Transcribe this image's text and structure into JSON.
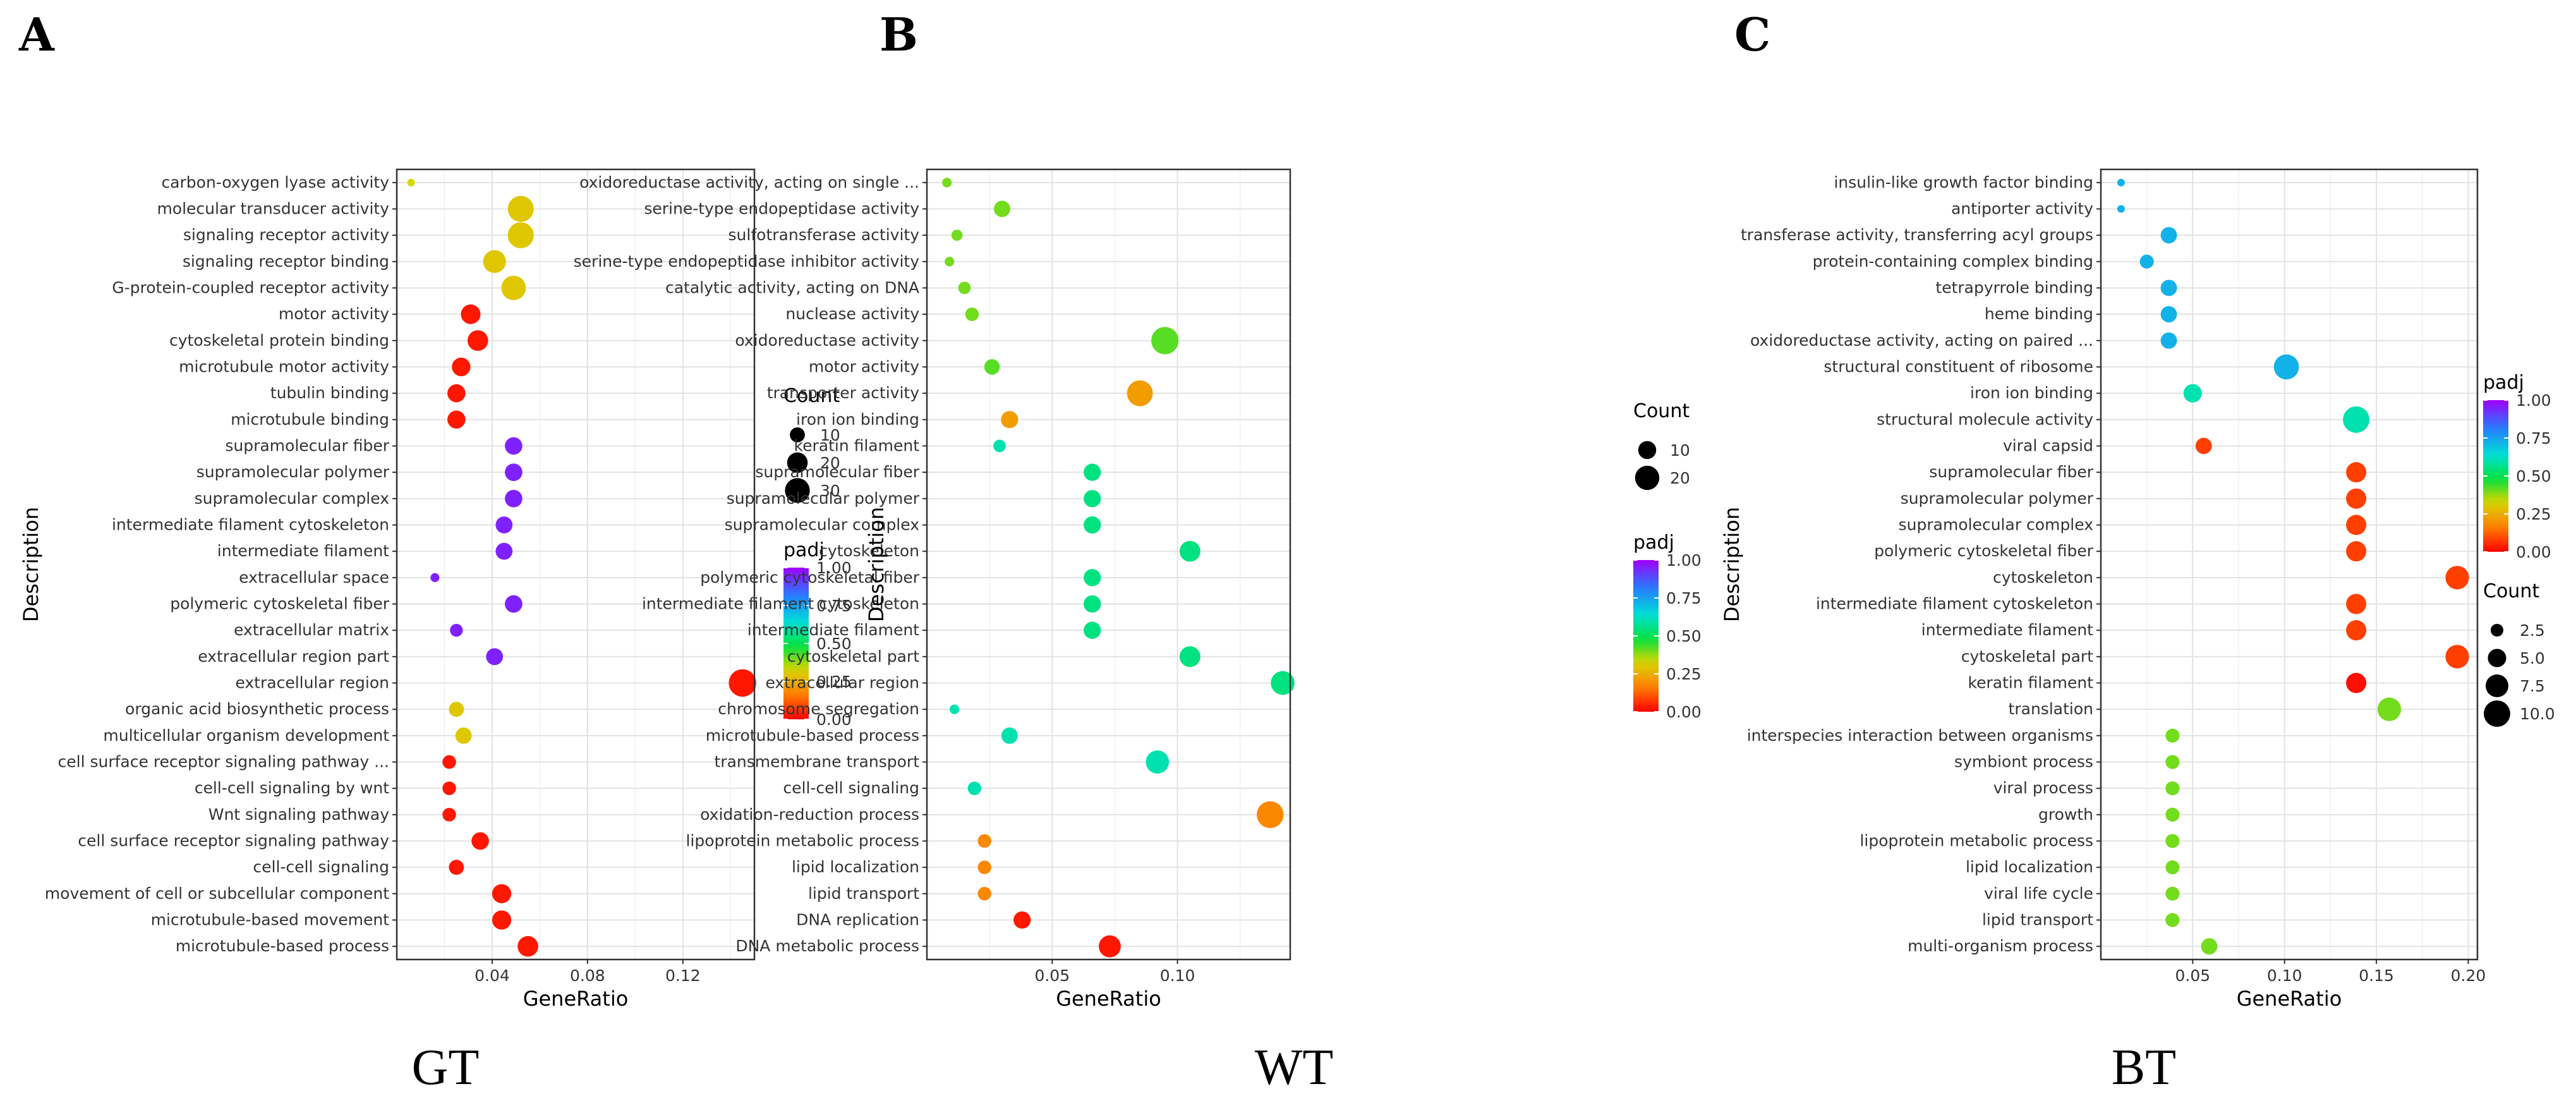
{
  "chart_data": [
    {
      "type": "scatter",
      "panel_label": "A",
      "group_label": "GT",
      "xlabel": "GeneRatio",
      "ylabel": "Description",
      "xlim": [
        0.0,
        0.15
      ],
      "xticks": [
        0.04,
        0.08,
        0.12
      ],
      "xtick_labels": [
        "0.04",
        "0.08",
        "0.12"
      ],
      "grid": true,
      "legend_position": "right",
      "count_legend": {
        "title": "Count",
        "values": [
          10,
          20,
          30
        ],
        "labels": [
          "10",
          "20",
          "30"
        ],
        "range": [
          2,
          38
        ]
      },
      "padj_legend": {
        "title": "padj",
        "ticks": [
          1.0,
          0.75,
          0.5,
          0.25,
          0.0
        ],
        "labels": [
          "1.00",
          "0.75",
          "0.50",
          "0.25",
          "0.00"
        ]
      },
      "points": [
        {
          "term": "carbon-oxygen lyase activity",
          "x": 0.006,
          "count": 2,
          "padj": 0.33
        },
        {
          "term": "molecular transducer activity",
          "x": 0.052,
          "count": 33,
          "padj": 0.3
        },
        {
          "term": "signaling receptor activity",
          "x": 0.052,
          "count": 33,
          "padj": 0.3
        },
        {
          "term": "signaling receptor binding",
          "x": 0.041,
          "count": 25,
          "padj": 0.3
        },
        {
          "term": "G-protein-coupled receptor activity",
          "x": 0.049,
          "count": 29,
          "padj": 0.3
        },
        {
          "term": "motor activity",
          "x": 0.031,
          "count": 18,
          "padj": 0.03
        },
        {
          "term": "cytoskeletal protein binding",
          "x": 0.034,
          "count": 20,
          "padj": 0.03
        },
        {
          "term": "microtubule motor activity",
          "x": 0.027,
          "count": 16,
          "padj": 0.03
        },
        {
          "term": "tubulin binding",
          "x": 0.025,
          "count": 15,
          "padj": 0.03
        },
        {
          "term": "microtubule binding",
          "x": 0.025,
          "count": 15,
          "padj": 0.03
        },
        {
          "term": "supramolecular fiber",
          "x": 0.049,
          "count": 14,
          "padj": 0.95
        },
        {
          "term": "supramolecular polymer",
          "x": 0.049,
          "count": 14,
          "padj": 0.95
        },
        {
          "term": "supramolecular complex",
          "x": 0.049,
          "count": 14,
          "padj": 0.95
        },
        {
          "term": "intermediate filament cytoskeleton",
          "x": 0.045,
          "count": 13,
          "padj": 0.95
        },
        {
          "term": "intermediate filament",
          "x": 0.045,
          "count": 13,
          "padj": 0.95
        },
        {
          "term": "extracellular space",
          "x": 0.016,
          "count": 3,
          "padj": 0.95
        },
        {
          "term": "polymeric cytoskeletal fiber",
          "x": 0.049,
          "count": 14,
          "padj": 0.95
        },
        {
          "term": "extracellular matrix",
          "x": 0.025,
          "count": 7,
          "padj": 0.95
        },
        {
          "term": "extracellular region part",
          "x": 0.041,
          "count": 13,
          "padj": 0.95
        },
        {
          "term": "extracellular region",
          "x": 0.145,
          "count": 37,
          "padj": 0.03
        },
        {
          "term": "organic acid biosynthetic process",
          "x": 0.025,
          "count": 10,
          "padj": 0.3
        },
        {
          "term": "multicellular organism development",
          "x": 0.028,
          "count": 12,
          "padj": 0.3
        },
        {
          "term": "cell surface receptor signaling pathway ...",
          "x": 0.022,
          "count": 8,
          "padj": 0.03
        },
        {
          "term": "cell-cell signaling by wnt",
          "x": 0.022,
          "count": 8,
          "padj": 0.03
        },
        {
          "term": "Wnt signaling pathway",
          "x": 0.022,
          "count": 8,
          "padj": 0.03
        },
        {
          "term": "cell surface receptor signaling pathway",
          "x": 0.035,
          "count": 14,
          "padj": 0.03
        },
        {
          "term": "cell-cell signaling",
          "x": 0.025,
          "count": 10,
          "padj": 0.03
        },
        {
          "term": "movement of cell or subcellular component",
          "x": 0.044,
          "count": 17,
          "padj": 0.03
        },
        {
          "term": "microtubule-based movement",
          "x": 0.044,
          "count": 17,
          "padj": 0.03
        },
        {
          "term": "microtubule-based process",
          "x": 0.055,
          "count": 20,
          "padj": 0.03
        }
      ]
    },
    {
      "type": "scatter",
      "panel_label": "B",
      "group_label": "WT",
      "xlabel": "GeneRatio",
      "ylabel": "Description",
      "xlim": [
        0.0,
        0.145
      ],
      "xticks": [
        0.05,
        0.1
      ],
      "xtick_labels": [
        "0.05",
        "0.10"
      ],
      "grid": true,
      "legend_position": "right",
      "count_legend": {
        "title": "Count",
        "values": [
          10,
          20
        ],
        "labels": [
          "10",
          "20"
        ],
        "range": [
          1,
          27
        ]
      },
      "padj_legend": {
        "title": "padj",
        "ticks": [
          1.0,
          0.75,
          0.5,
          0.25,
          0.0
        ],
        "labels": [
          "1.00",
          "0.75",
          "0.50",
          "0.25",
          "0.00"
        ]
      },
      "points": [
        {
          "term": "oxidoreductase activity, acting on single ...",
          "x": 0.008,
          "count": 2,
          "padj": 0.4
        },
        {
          "term": "serine-type endopeptidase activity",
          "x": 0.03,
          "count": 8,
          "padj": 0.4
        },
        {
          "term": "sulfotransferase activity",
          "x": 0.012,
          "count": 3,
          "padj": 0.4
        },
        {
          "term": "serine-type endopeptidase inhibitor activity",
          "x": 0.009,
          "count": 2,
          "padj": 0.4
        },
        {
          "term": "catalytic activity, acting on DNA",
          "x": 0.015,
          "count": 4,
          "padj": 0.4
        },
        {
          "term": "nuclease activity",
          "x": 0.018,
          "count": 5,
          "padj": 0.4
        },
        {
          "term": "oxidoreductase activity",
          "x": 0.095,
          "count": 26,
          "padj": 0.42
        },
        {
          "term": "motor activity",
          "x": 0.026,
          "count": 7,
          "padj": 0.42
        },
        {
          "term": "transporter activity",
          "x": 0.085,
          "count": 23,
          "padj": 0.22
        },
        {
          "term": "iron ion binding",
          "x": 0.033,
          "count": 9,
          "padj": 0.22
        },
        {
          "term": "keratin filament",
          "x": 0.029,
          "count": 4,
          "padj": 0.6
        },
        {
          "term": "supramolecular fiber",
          "x": 0.066,
          "count": 9,
          "padj": 0.55
        },
        {
          "term": "supramolecular polymer",
          "x": 0.066,
          "count": 9,
          "padj": 0.55
        },
        {
          "term": "supramolecular complex",
          "x": 0.066,
          "count": 9,
          "padj": 0.55
        },
        {
          "term": "cytoskeleton",
          "x": 0.105,
          "count": 14,
          "padj": 0.55
        },
        {
          "term": "polymeric cytoskeletal fiber",
          "x": 0.066,
          "count": 9,
          "padj": 0.55
        },
        {
          "term": "intermediate filament cytoskeleton",
          "x": 0.066,
          "count": 9,
          "padj": 0.55
        },
        {
          "term": "intermediate filament",
          "x": 0.066,
          "count": 9,
          "padj": 0.55
        },
        {
          "term": "cytoskeletal part",
          "x": 0.105,
          "count": 14,
          "padj": 0.55
        },
        {
          "term": "extracellular region",
          "x": 0.142,
          "count": 19,
          "padj": 0.55
        },
        {
          "term": "chromosome segregation",
          "x": 0.011,
          "count": 2,
          "padj": 0.6
        },
        {
          "term": "microtubule-based process",
          "x": 0.033,
          "count": 8,
          "padj": 0.6
        },
        {
          "term": "transmembrane transport",
          "x": 0.092,
          "count": 18,
          "padj": 0.6
        },
        {
          "term": "cell-cell signaling",
          "x": 0.019,
          "count": 5,
          "padj": 0.6
        },
        {
          "term": "oxidation-reduction process",
          "x": 0.137,
          "count": 25,
          "padj": 0.18
        },
        {
          "term": "lipoprotein metabolic process",
          "x": 0.023,
          "count": 5,
          "padj": 0.18
        },
        {
          "term": "lipid localization",
          "x": 0.023,
          "count": 5,
          "padj": 0.18
        },
        {
          "term": "lipid transport",
          "x": 0.023,
          "count": 5,
          "padj": 0.18
        },
        {
          "term": "DNA replication",
          "x": 0.038,
          "count": 9,
          "padj": 0.03
        },
        {
          "term": "DNA metabolic process",
          "x": 0.073,
          "count": 16,
          "padj": 0.03
        }
      ]
    },
    {
      "type": "scatter",
      "panel_label": "C",
      "group_label": "BT",
      "xlabel": "GeneRatio",
      "ylabel": "Description",
      "xlim": [
        0.0,
        0.205
      ],
      "xticks": [
        0.05,
        0.1,
        0.15,
        0.2
      ],
      "xtick_labels": [
        "0.05",
        "0.10",
        "0.15",
        "0.20"
      ],
      "grid": true,
      "legend_position": "right",
      "count_legend": {
        "title": "Count",
        "values": [
          2.5,
          5.0,
          7.5,
          10.0
        ],
        "labels": [
          "2.5",
          "5.0",
          "7.5",
          "10.0"
        ],
        "range": [
          1,
          11
        ]
      },
      "padj_legend": {
        "title": "padj",
        "ticks": [
          1.0,
          0.75,
          0.5,
          0.25,
          0.0
        ],
        "labels": [
          "1.00",
          "0.75",
          "0.50",
          "0.25",
          "0.00"
        ]
      },
      "points": [
        {
          "term": "insulin-like growth factor binding",
          "x": 0.011,
          "count": 1,
          "padj": 0.72
        },
        {
          "term": "antiporter activity",
          "x": 0.011,
          "count": 1,
          "padj": 0.72
        },
        {
          "term": "transferase activity, transferring acyl groups",
          "x": 0.037,
          "count": 4,
          "padj": 0.72
        },
        {
          "term": "protein-containing complex binding",
          "x": 0.025,
          "count": 3,
          "padj": 0.72
        },
        {
          "term": "tetrapyrrole binding",
          "x": 0.037,
          "count": 4,
          "padj": 0.72
        },
        {
          "term": "heme binding",
          "x": 0.037,
          "count": 4,
          "padj": 0.72
        },
        {
          "term": "oxidoreductase activity, acting on paired ...",
          "x": 0.037,
          "count": 4,
          "padj": 0.72
        },
        {
          "term": "structural constituent of ribosome",
          "x": 0.101,
          "count": 9,
          "padj": 0.72
        },
        {
          "term": "iron ion binding",
          "x": 0.05,
          "count": 5,
          "padj": 0.6
        },
        {
          "term": "structural molecule activity",
          "x": 0.139,
          "count": 10,
          "padj": 0.6
        },
        {
          "term": "viral capsid",
          "x": 0.056,
          "count": 4,
          "padj": 0.08
        },
        {
          "term": "supramolecular fiber",
          "x": 0.139,
          "count": 6,
          "padj": 0.08
        },
        {
          "term": "supramolecular polymer",
          "x": 0.139,
          "count": 6,
          "padj": 0.08
        },
        {
          "term": "supramolecular complex",
          "x": 0.139,
          "count": 6,
          "padj": 0.08
        },
        {
          "term": "polymeric cytoskeletal fiber",
          "x": 0.139,
          "count": 6,
          "padj": 0.08
        },
        {
          "term": "cytoskeleton",
          "x": 0.194,
          "count": 8,
          "padj": 0.08
        },
        {
          "term": "intermediate filament cytoskeleton",
          "x": 0.139,
          "count": 6,
          "padj": 0.08
        },
        {
          "term": "intermediate filament",
          "x": 0.139,
          "count": 6,
          "padj": 0.08
        },
        {
          "term": "cytoskeletal part",
          "x": 0.194,
          "count": 8,
          "padj": 0.08
        },
        {
          "term": "keratin filament",
          "x": 0.139,
          "count": 6,
          "padj": 0.02
        },
        {
          "term": "translation",
          "x": 0.157,
          "count": 8,
          "padj": 0.4
        },
        {
          "term": "interspecies interaction between organisms",
          "x": 0.039,
          "count": 3,
          "padj": 0.4
        },
        {
          "term": "symbiont process",
          "x": 0.039,
          "count": 3,
          "padj": 0.4
        },
        {
          "term": "viral process",
          "x": 0.039,
          "count": 3,
          "padj": 0.4
        },
        {
          "term": "growth",
          "x": 0.039,
          "count": 3,
          "padj": 0.4
        },
        {
          "term": "lipoprotein metabolic process",
          "x": 0.039,
          "count": 3,
          "padj": 0.4
        },
        {
          "term": "lipid localization",
          "x": 0.039,
          "count": 3,
          "padj": 0.4
        },
        {
          "term": "viral life cycle",
          "x": 0.039,
          "count": 3,
          "padj": 0.4
        },
        {
          "term": "lipid transport",
          "x": 0.039,
          "count": 3,
          "padj": 0.4
        },
        {
          "term": "multi-organism process",
          "x": 0.059,
          "count": 4,
          "padj": 0.4
        }
      ]
    }
  ]
}
